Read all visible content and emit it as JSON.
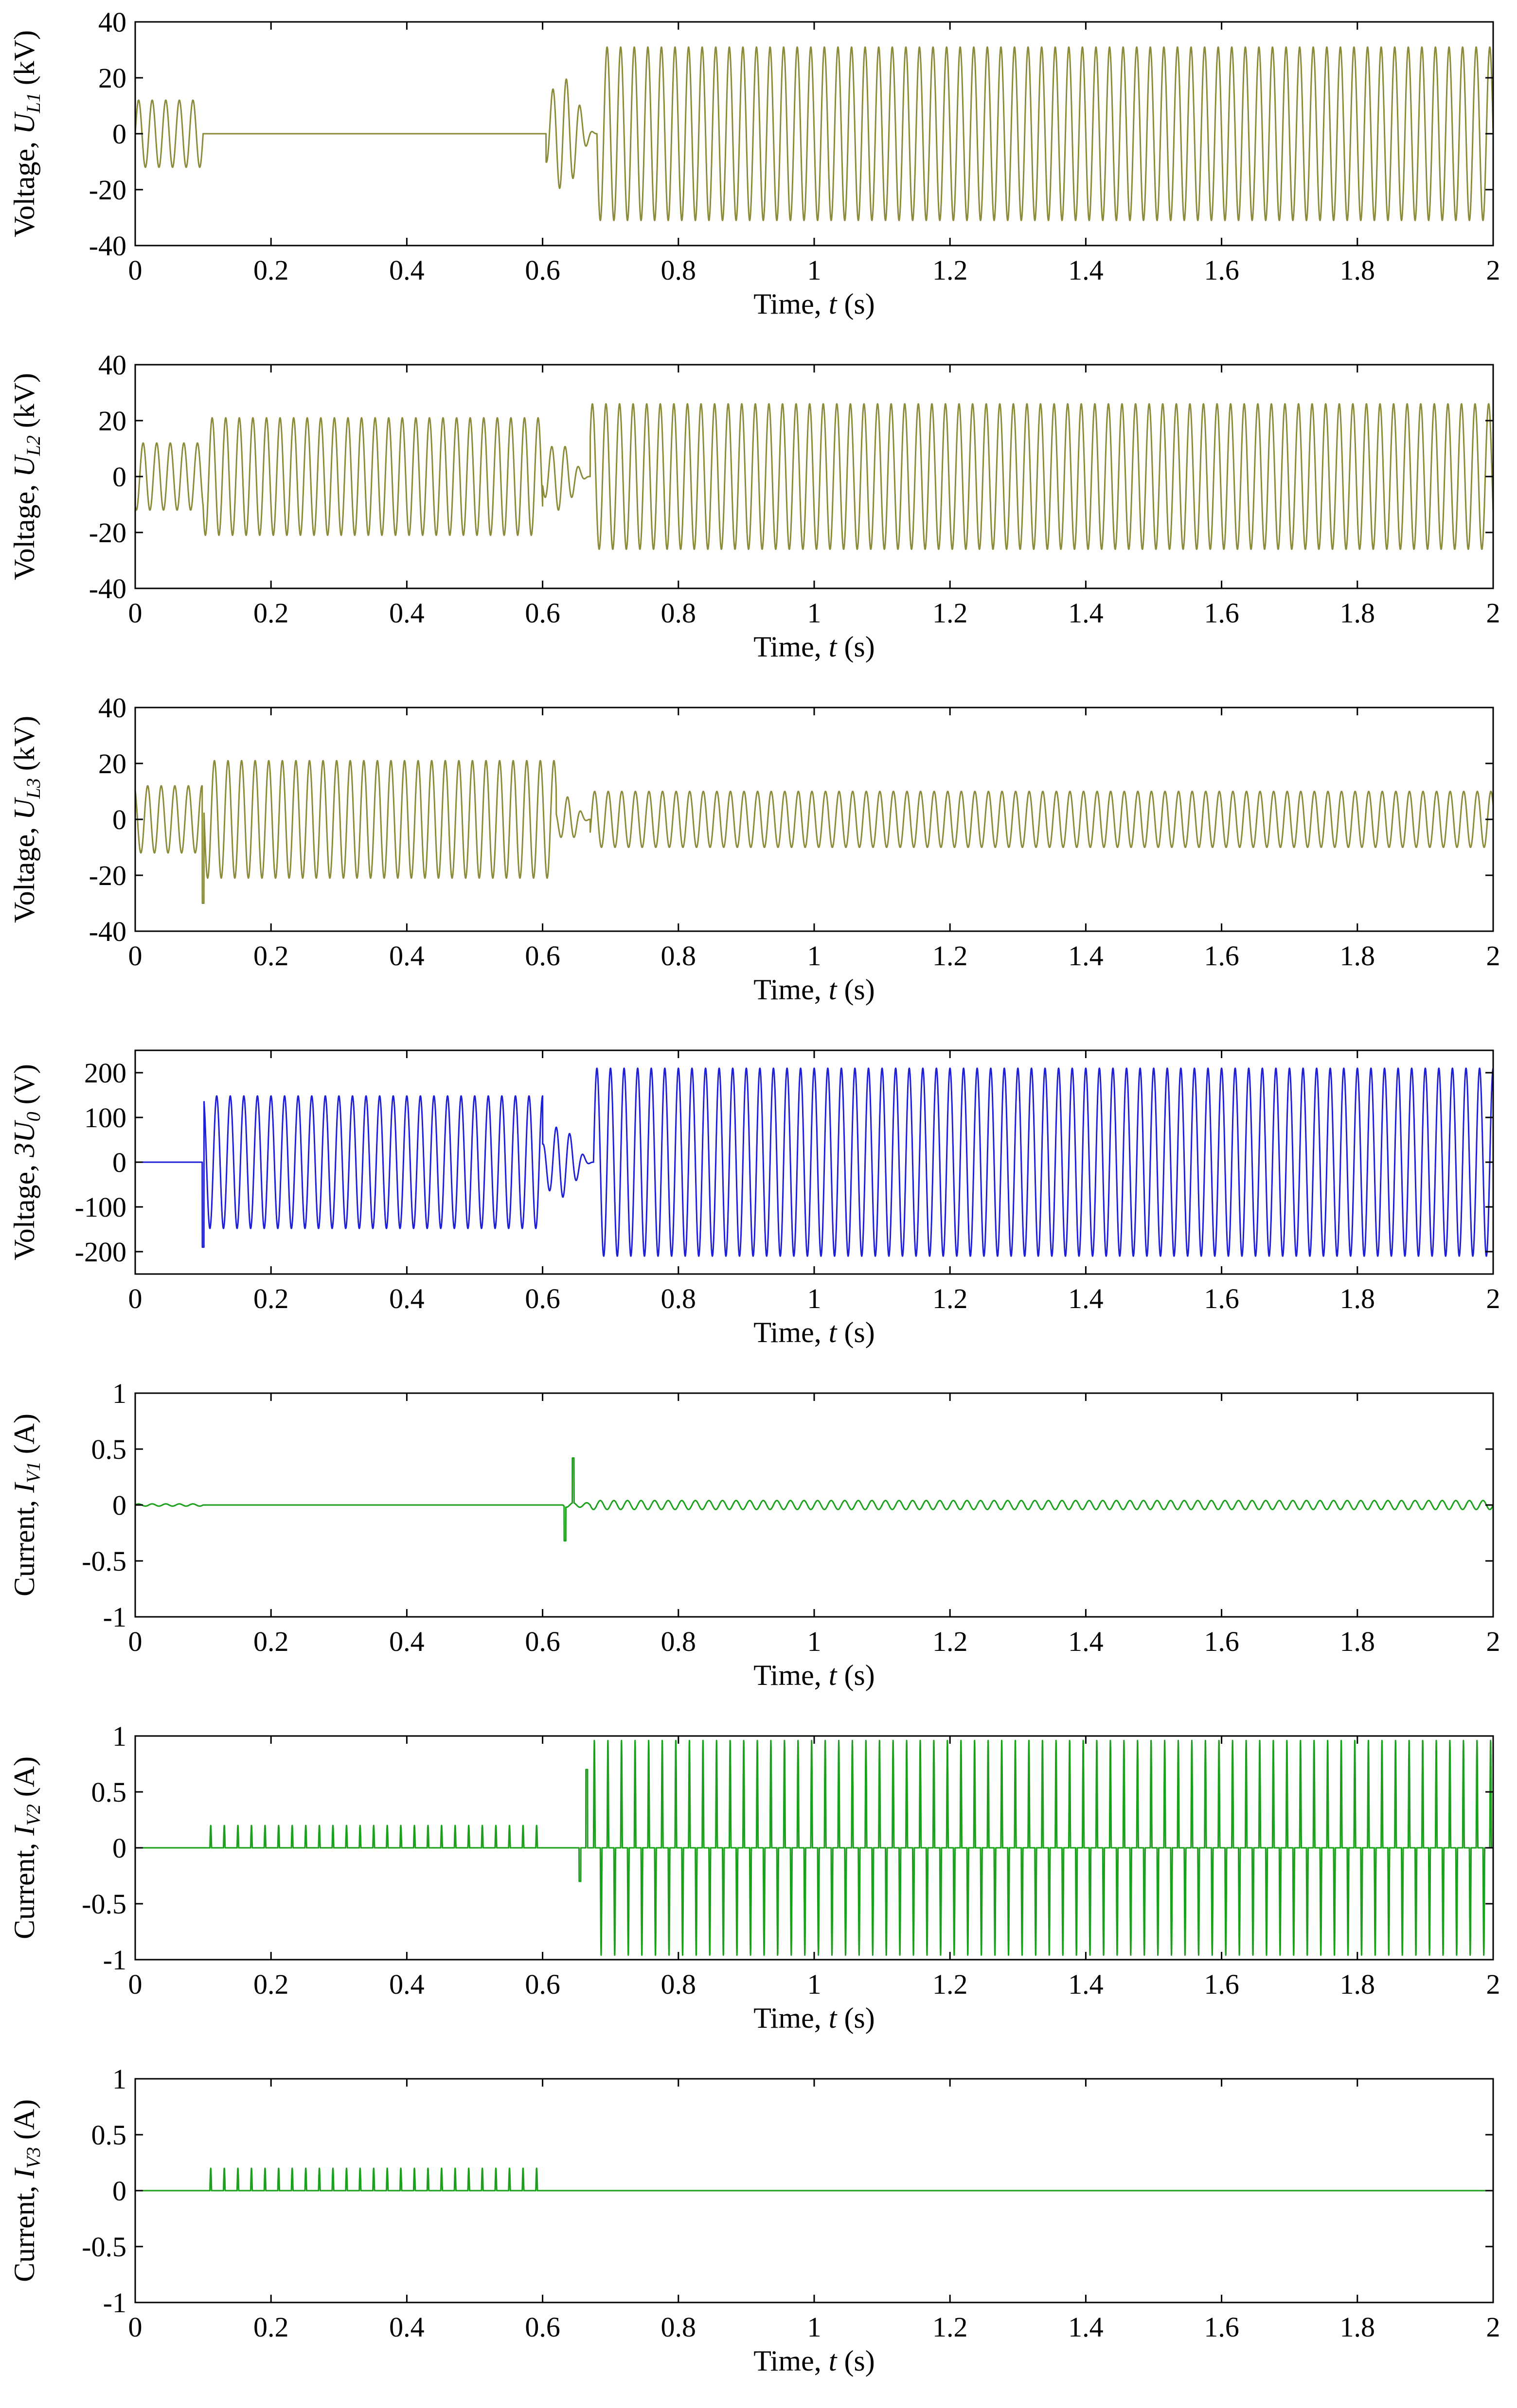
{
  "chart_data": [
    {
      "id": "UL1",
      "type": "line",
      "color": "#8b8b3a",
      "ylabel_prefix": "Voltage, ",
      "ylabel_sym": "U",
      "ylabel_sub": "L1",
      "ylabel_unit": " (kV)",
      "xlabel_prefix": "Time, ",
      "xlabel_sym": "t",
      "xlabel_unit": " (s)",
      "xlim": [
        0,
        2
      ],
      "ylim": [
        -40,
        40
      ],
      "xticks": [
        "0",
        "0.2",
        "0.4",
        "0.6",
        "0.8",
        "1",
        "1.2",
        "1.4",
        "1.6",
        "1.8",
        "2"
      ],
      "yticks": [
        "-40",
        "-20",
        "0",
        "20",
        "40"
      ],
      "waveform": {
        "freq_hz": 50,
        "segments": [
          {
            "t0": 0,
            "t1": 0.1,
            "amp": 12,
            "phase_deg": 0
          },
          {
            "t0": 0.1,
            "t1": 0.605,
            "amp": 0,
            "phase_deg": 0
          },
          {
            "t0": 0.605,
            "t1": 0.68,
            "amp": 20,
            "phase_deg": 180,
            "ramp": true
          },
          {
            "t0": 0.68,
            "t1": 2,
            "amp": 31,
            "phase_deg": 180
          }
        ]
      }
    },
    {
      "id": "UL2",
      "type": "line",
      "color": "#8b8b3a",
      "ylabel_prefix": "Voltage, ",
      "ylabel_sym": "U",
      "ylabel_sub": "L2",
      "ylabel_unit": " (kV)",
      "xlabel_prefix": "Time, ",
      "xlabel_sym": "t",
      "xlabel_unit": " (s)",
      "xlim": [
        0,
        2
      ],
      "ylim": [
        -40,
        40
      ],
      "xticks": [
        "0",
        "0.2",
        "0.4",
        "0.6",
        "0.8",
        "1",
        "1.2",
        "1.4",
        "1.6",
        "1.8",
        "2"
      ],
      "yticks": [
        "-40",
        "-20",
        "0",
        "20",
        "40"
      ],
      "waveform": {
        "freq_hz": 50,
        "segments": [
          {
            "t0": 0,
            "t1": 0.1,
            "amp": 12,
            "phase_deg": -120
          },
          {
            "t0": 0.1,
            "t1": 0.6,
            "amp": 21,
            "phase_deg": -150
          },
          {
            "t0": 0.6,
            "t1": 0.67,
            "amp": 12,
            "phase_deg": -150,
            "ramp": true
          },
          {
            "t0": 0.67,
            "t1": 2,
            "amp": 26,
            "phase_deg": -150
          }
        ]
      }
    },
    {
      "id": "UL3",
      "type": "line",
      "color": "#8b8b3a",
      "ylabel_prefix": "Voltage, ",
      "ylabel_sym": "U",
      "ylabel_sub": "L3",
      "ylabel_unit": " (kV)",
      "xlabel_prefix": "Time, ",
      "xlabel_sym": "t",
      "xlabel_unit": " (s)",
      "xlim": [
        0,
        2
      ],
      "ylim": [
        -40,
        40
      ],
      "xticks": [
        "0",
        "0.2",
        "0.4",
        "0.6",
        "0.8",
        "1",
        "1.2",
        "1.4",
        "1.6",
        "1.8",
        "2"
      ],
      "yticks": [
        "-40",
        "-20",
        "0",
        "20",
        "40"
      ],
      "waveform": {
        "freq_hz": 50,
        "segments": [
          {
            "t0": 0,
            "t1": 0.1,
            "amp": 12,
            "phase_deg": 120
          },
          {
            "t0": 0.1,
            "t1": 0.62,
            "amp": 21,
            "phase_deg": 150
          },
          {
            "t0": 0.62,
            "t1": 0.67,
            "amp": 8,
            "phase_deg": 150,
            "ramp": true
          },
          {
            "t0": 0.67,
            "t1": 2,
            "amp": 10,
            "phase_deg": 150
          }
        ]
      },
      "spikes": [
        {
          "t": 0.1,
          "value": -30
        }
      ]
    },
    {
      "id": "U0",
      "type": "line",
      "color": "#1f1fd6",
      "ylabel_prefix": "Voltage, ",
      "ylabel_sym": "3U",
      "ylabel_sub": "0",
      "ylabel_unit": " (V)",
      "xlabel_prefix": "Time, ",
      "xlabel_sym": "t",
      "xlabel_unit": " (s)",
      "xlim": [
        0,
        2
      ],
      "ylim": [
        -250,
        250
      ],
      "xticks": [
        "0",
        "0.2",
        "0.4",
        "0.6",
        "0.8",
        "1",
        "1.2",
        "1.4",
        "1.6",
        "1.8",
        "2"
      ],
      "yticks": [
        "-200",
        "-100",
        "0",
        "100",
        "200"
      ],
      "waveform": {
        "freq_hz": 50,
        "segments": [
          {
            "t0": 0,
            "t1": 0.1,
            "amp": 0,
            "phase_deg": 0
          },
          {
            "t0": 0.1,
            "t1": 0.6,
            "amp": 148,
            "phase_deg": 90
          },
          {
            "t0": 0.6,
            "t1": 0.675,
            "amp": 80,
            "phase_deg": 90,
            "ramp": true
          },
          {
            "t0": 0.675,
            "t1": 2,
            "amp": 210,
            "phase_deg": 90
          }
        ]
      },
      "spikes": [
        {
          "t": 0.1,
          "value": -190
        }
      ]
    },
    {
      "id": "IV1",
      "type": "line",
      "color": "#1aa01a",
      "ylabel_prefix": "Current, ",
      "ylabel_sym": "I",
      "ylabel_sub": "V1",
      "ylabel_unit": " (A)",
      "xlabel_prefix": "Time, ",
      "xlabel_sym": "t",
      "xlabel_unit": " (s)",
      "xlim": [
        0,
        2
      ],
      "ylim": [
        -1,
        1
      ],
      "xticks": [
        "0",
        "0.2",
        "0.4",
        "0.6",
        "0.8",
        "1",
        "1.2",
        "1.4",
        "1.6",
        "1.8",
        "2"
      ],
      "yticks": [
        "-1",
        "-0.5",
        "0",
        "0.5",
        "1"
      ],
      "waveform": {
        "freq_hz": 50,
        "segments": [
          {
            "t0": 0,
            "t1": 0.1,
            "amp": 0.01,
            "phase_deg": 0
          },
          {
            "t0": 0.1,
            "t1": 0.63,
            "amp": 0,
            "phase_deg": 0
          },
          {
            "t0": 0.63,
            "t1": 0.67,
            "amp": 0.02,
            "phase_deg": 0
          },
          {
            "t0": 0.67,
            "t1": 2,
            "amp": 0.04,
            "phase_deg": 0
          }
        ]
      },
      "spikes": [
        {
          "t": 0.633,
          "value": -0.32
        },
        {
          "t": 0.645,
          "value": 0.42
        }
      ]
    },
    {
      "id": "IV2",
      "type": "line",
      "color": "#1aa01a",
      "ylabel_prefix": "Current, ",
      "ylabel_sym": "I",
      "ylabel_sub": "V2",
      "ylabel_unit": " (A)",
      "xlabel_prefix": "Time, ",
      "xlabel_sym": "t",
      "xlabel_unit": " (s)",
      "xlim": [
        0,
        2
      ],
      "ylim": [
        -1,
        1
      ],
      "xticks": [
        "0",
        "0.2",
        "0.4",
        "0.6",
        "0.8",
        "1",
        "1.2",
        "1.4",
        "1.6",
        "1.8",
        "2"
      ],
      "yticks": [
        "-1",
        "-0.5",
        "0",
        "0.5",
        "1"
      ],
      "pulse_train": [
        {
          "t0": 0.11,
          "t1": 0.6,
          "period": 0.02,
          "peak": 0.2,
          "neg_peak": 0
        },
        {
          "t0": 0.675,
          "t1": 2,
          "period": 0.02,
          "peak": 0.96,
          "neg_peak": -0.96
        }
      ],
      "spikes": [
        {
          "t": 0.655,
          "value": -0.3
        },
        {
          "t": 0.665,
          "value": 0.7
        }
      ]
    },
    {
      "id": "IV3",
      "type": "line",
      "color": "#1aa01a",
      "ylabel_prefix": "Current, ",
      "ylabel_sym": "I",
      "ylabel_sub": "V3",
      "ylabel_unit": " (A)",
      "xlabel_prefix": "Time, ",
      "xlabel_sym": "t",
      "xlabel_unit": " (s)",
      "xlim": [
        0,
        2
      ],
      "ylim": [
        -1,
        1
      ],
      "xticks": [
        "0",
        "0.2",
        "0.4",
        "0.6",
        "0.8",
        "1",
        "1.2",
        "1.4",
        "1.6",
        "1.8",
        "2"
      ],
      "yticks": [
        "-1",
        "-0.5",
        "0",
        "0.5",
        "1"
      ],
      "pulse_train": [
        {
          "t0": 0.11,
          "t1": 0.61,
          "period": 0.02,
          "peak": 0.2,
          "neg_peak": 0
        }
      ]
    }
  ]
}
